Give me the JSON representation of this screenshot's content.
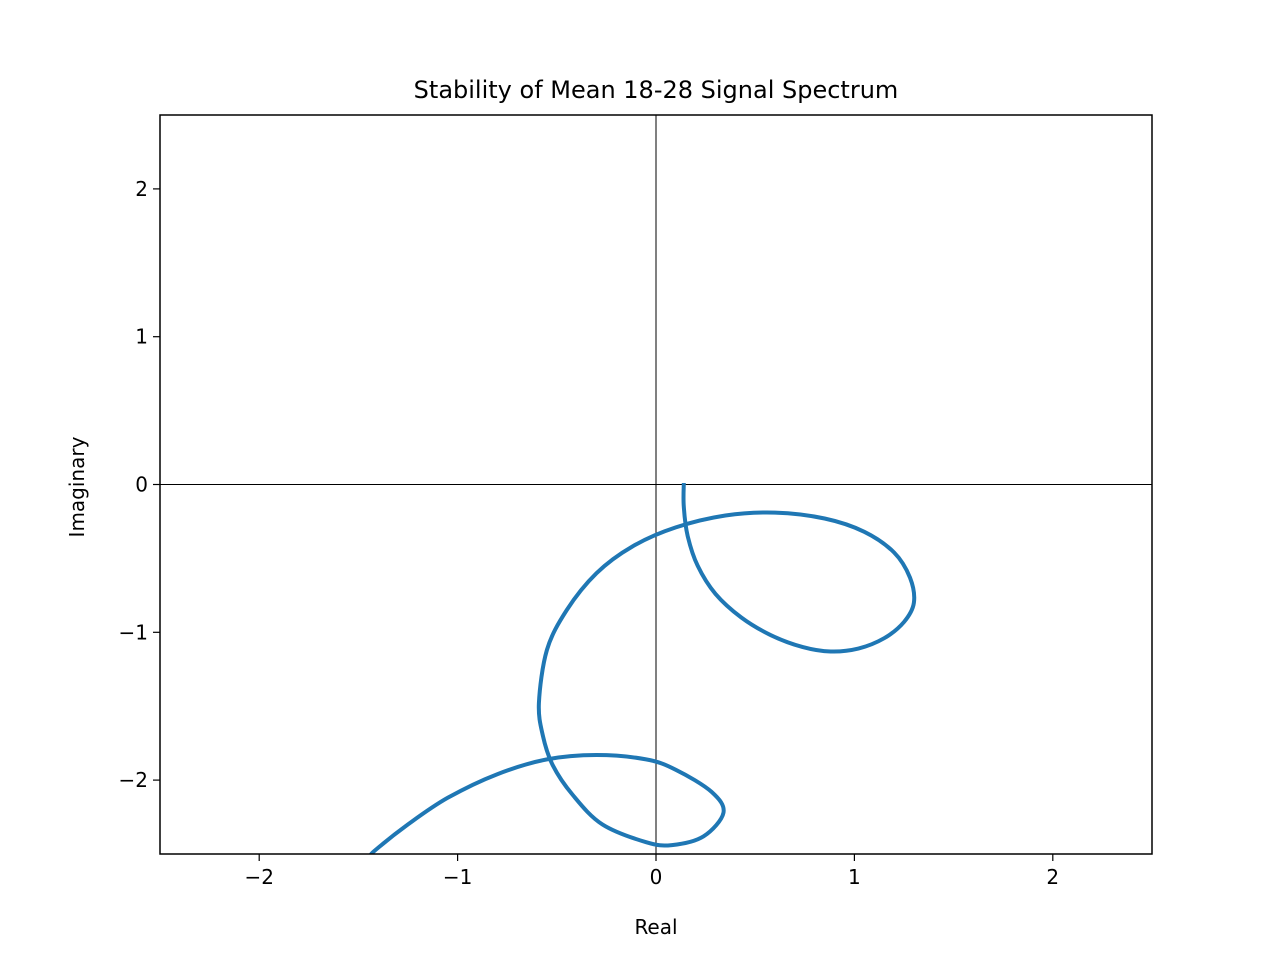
{
  "chart_data": {
    "type": "line",
    "title": "Stability of Mean 18-28 Signal Spectrum",
    "xlabel": "Real",
    "ylabel": "Imaginary",
    "xlim": [
      -2.5,
      2.5
    ],
    "ylim": [
      -2.5,
      2.5
    ],
    "x_ticks": [
      -2,
      -1,
      0,
      1,
      2
    ],
    "y_ticks": [
      -2,
      -1,
      0,
      1,
      2
    ],
    "x_tick_labels": [
      "−2",
      "−1",
      "0",
      "1",
      "2"
    ],
    "y_tick_labels": [
      "−2",
      "−1",
      "0",
      "1",
      "2"
    ],
    "reference_lines": {
      "x": 0,
      "y": 0
    },
    "grid": false,
    "legend": "none",
    "series": [
      {
        "color": "#1f77b4",
        "points": [
          [
            0.14,
            0.01
          ],
          [
            0.14,
            -0.15
          ],
          [
            0.16,
            -0.35
          ],
          [
            0.21,
            -0.55
          ],
          [
            0.3,
            -0.74
          ],
          [
            0.43,
            -0.9
          ],
          [
            0.58,
            -1.02
          ],
          [
            0.74,
            -1.1
          ],
          [
            0.88,
            -1.13
          ],
          [
            1.02,
            -1.11
          ],
          [
            1.15,
            -1.04
          ],
          [
            1.25,
            -0.93
          ],
          [
            1.3,
            -0.8
          ],
          [
            1.28,
            -0.63
          ],
          [
            1.2,
            -0.46
          ],
          [
            1.05,
            -0.32
          ],
          [
            0.85,
            -0.23
          ],
          [
            0.6,
            -0.19
          ],
          [
            0.35,
            -0.21
          ],
          [
            0.1,
            -0.29
          ],
          [
            -0.12,
            -0.42
          ],
          [
            -0.3,
            -0.6
          ],
          [
            -0.45,
            -0.85
          ],
          [
            -0.55,
            -1.12
          ],
          [
            -0.59,
            -1.48
          ],
          [
            -0.57,
            -1.7
          ],
          [
            -0.52,
            -1.9
          ],
          [
            -0.42,
            -2.1
          ],
          [
            -0.27,
            -2.3
          ],
          [
            -0.05,
            -2.42
          ],
          [
            0.08,
            -2.44
          ],
          [
            0.24,
            -2.38
          ],
          [
            0.34,
            -2.22
          ],
          [
            0.28,
            -2.08
          ],
          [
            0.1,
            -1.93
          ],
          [
            -0.05,
            -1.86
          ],
          [
            -0.3,
            -1.83
          ],
          [
            -0.55,
            -1.86
          ],
          [
            -0.8,
            -1.96
          ],
          [
            -1.05,
            -2.12
          ],
          [
            -1.25,
            -2.3
          ],
          [
            -1.42,
            -2.48
          ],
          [
            -1.44,
            -2.52
          ]
        ]
      }
    ]
  }
}
